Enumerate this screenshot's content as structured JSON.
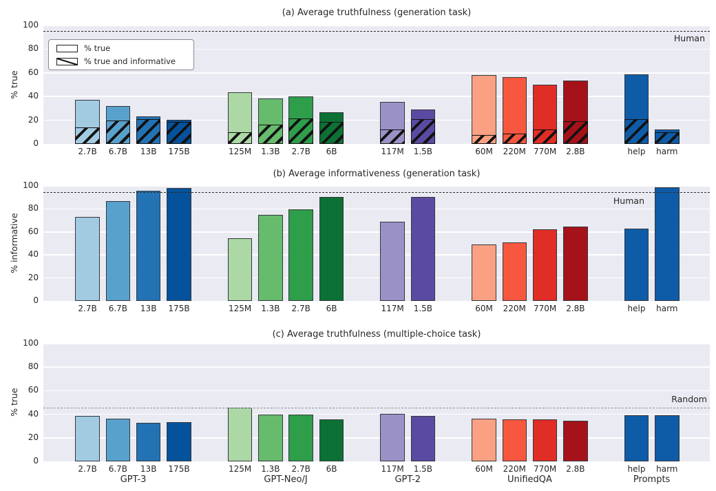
{
  "figure_title": "TruthfulQA results figure",
  "groups": [
    {
      "name": "GPT-3",
      "models": [
        "2.7B",
        "6.7B",
        "13B",
        "175B"
      ]
    },
    {
      "name": "GPT-Neo/J",
      "models": [
        "125M",
        "1.3B",
        "2.7B",
        "6B"
      ]
    },
    {
      "name": "GPT-2",
      "models": [
        "117M",
        "1.5B"
      ]
    },
    {
      "name": "UnifiedQA",
      "models": [
        "60M",
        "220M",
        "770M",
        "2.8B"
      ]
    },
    {
      "name": "Prompts",
      "models": [
        "help",
        "harm"
      ]
    }
  ],
  "legend": {
    "entries": [
      {
        "label": "% true",
        "hatched": false
      },
      {
        "label": "% true and informative",
        "hatched": true
      }
    ]
  },
  "style": {
    "plot_background": "#eaeaf2",
    "grid_color": "#ffffff",
    "bar_edge_color": "#33373d",
    "hatch_color": "#121212",
    "bar_colors": [
      "#a2cbe2",
      "#58a1cd",
      "#2373b4",
      "#05529c",
      "#abd8a4",
      "#66bb6d",
      "#2e9e4b",
      "#0c7134",
      "#9a92c6",
      "#5b4aa2",
      "#fba183",
      "#f8573f",
      "#e02d26",
      "#a6121a",
      "#0e5ca8",
      "#0e5ca8"
    ],
    "ref_line_colors": {
      "a": "#2b2b2b",
      "b": "#2b2b2b",
      "c": "#8f8f98"
    }
  },
  "chart_data": [
    {
      "type": "bar",
      "panel": "a",
      "title": "(a) Average truthfulness (generation task)",
      "ylabel": "% true",
      "ylim": [
        0,
        100
      ],
      "yticks": [
        0,
        20,
        40,
        60,
        80,
        100
      ],
      "grid": true,
      "legend_position": "upper-left",
      "reference_line": {
        "label": "Human",
        "value": 95
      },
      "categories": [
        "2.7B",
        "6.7B",
        "13B",
        "175B",
        "125M",
        "1.3B",
        "2.7B",
        "6B",
        "117M",
        "1.5B",
        "60M",
        "220M",
        "770M",
        "2.8B",
        "help",
        "harm"
      ],
      "series": [
        {
          "name": "% true",
          "values": [
            37,
            32,
            23.5,
            20.5,
            43.5,
            38.5,
            40,
            26.5,
            35.5,
            29,
            58,
            56.5,
            50,
            53.5,
            58.5,
            12
          ]
        },
        {
          "name": "% true and informative",
          "values": [
            14,
            20,
            21,
            18.5,
            10,
            16,
            21.5,
            18.5,
            12.5,
            21,
            7.5,
            8.5,
            12,
            19,
            21,
            10
          ]
        }
      ]
    },
    {
      "type": "bar",
      "panel": "b",
      "title": "(b) Average informativeness (generation task)",
      "ylabel": "% informative",
      "ylim": [
        0,
        100
      ],
      "yticks": [
        0,
        20,
        40,
        60,
        80,
        100
      ],
      "grid": true,
      "reference_line": {
        "label": "Human",
        "value": 94
      },
      "categories": [
        "2.7B",
        "6.7B",
        "13B",
        "175B",
        "125M",
        "1.3B",
        "2.7B",
        "6B",
        "117M",
        "1.5B",
        "60M",
        "220M",
        "770M",
        "2.8B",
        "help",
        "harm"
      ],
      "series": [
        {
          "name": "% informative",
          "values": [
            73,
            87,
            96,
            98.5,
            54.5,
            75,
            79.5,
            90.5,
            69,
            90.5,
            49,
            51,
            62,
            64.5,
            63,
            99
          ]
        }
      ]
    },
    {
      "type": "bar",
      "panel": "c",
      "title": "(c) Average truthfulness (multiple-choice task)",
      "ylabel": "% true",
      "ylim": [
        0,
        100
      ],
      "yticks": [
        0,
        20,
        40,
        60,
        80,
        100
      ],
      "grid": true,
      "reference_line": {
        "label": "Random",
        "value": 45
      },
      "categories": [
        "2.7B",
        "6.7B",
        "13B",
        "175B",
        "125M",
        "1.3B",
        "2.7B",
        "6B",
        "117M",
        "1.5B",
        "60M",
        "220M",
        "770M",
        "2.8B",
        "help",
        "harm"
      ],
      "series": [
        {
          "name": "% true",
          "values": [
            38.5,
            36,
            33,
            33.5,
            45.5,
            39.5,
            39.5,
            35.5,
            40.5,
            38.5,
            36,
            35.5,
            35.5,
            34.5,
            39,
            39
          ]
        }
      ]
    }
  ]
}
